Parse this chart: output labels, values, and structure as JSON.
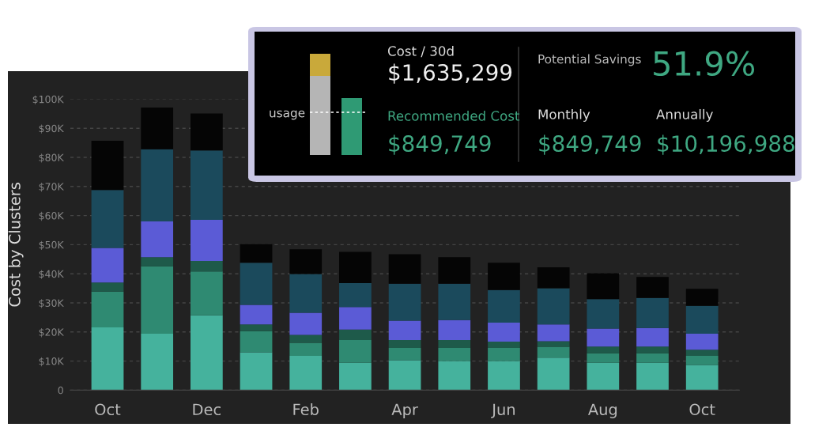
{
  "chart_data": [
    {
      "type": "bar",
      "stacked": true,
      "ylabel": "Cost by Clusters",
      "categories": [
        "Oct",
        null,
        "Dec",
        null,
        "Feb",
        null,
        "Apr",
        null,
        "Jun",
        null,
        "Aug",
        null,
        "Oct"
      ],
      "series": [
        {
          "color": "#45b29d",
          "values": [
            21.6,
            19.4,
            25.7,
            13.0,
            11.8,
            9.4,
            10.3,
            10.0,
            10.0,
            11.2,
            9.4,
            9.4,
            8.7
          ]
        },
        {
          "color": "#2f8a72",
          "values": [
            12.3,
            23.2,
            15.1,
            7.3,
            4.5,
            7.8,
            4.2,
            4.5,
            4.5,
            3.7,
            3.3,
            3.3,
            3.1
          ]
        },
        {
          "color": "#1e5a4a",
          "values": [
            3.1,
            3.1,
            3.6,
            2.3,
            2.7,
            3.6,
            2.7,
            2.7,
            2.2,
            1.9,
            2.3,
            2.3,
            2.1
          ]
        },
        {
          "color": "#5b5bd6",
          "values": [
            11.9,
            12.3,
            14.1,
            6.7,
            7.6,
            7.8,
            6.7,
            6.9,
            6.5,
            5.8,
            6.2,
            6.4,
            5.5
          ]
        },
        {
          "color": "#1b4a5c",
          "values": [
            19.9,
            24.8,
            23.9,
            14.5,
            13.3,
            8.2,
            12.7,
            12.5,
            11.2,
            12.4,
            10.1,
            10.3,
            9.6
          ]
        },
        {
          "color": "#050505",
          "values": [
            16.9,
            14.3,
            12.7,
            6.4,
            8.5,
            10.7,
            10.1,
            9.1,
            9.4,
            7.2,
            8.9,
            7.2,
            5.8
          ]
        }
      ],
      "ylim": [
        0,
        100
      ],
      "yticks": [
        0,
        {
          "value": 10,
          "label": "$10K"
        },
        {
          "value": 20,
          "label": "$20K"
        },
        {
          "value": 30,
          "label": "$30K"
        },
        {
          "value": 40,
          "label": "$40K"
        },
        {
          "value": 50,
          "label": "$50K"
        },
        {
          "value": 60,
          "label": "$60K"
        },
        {
          "value": 70,
          "label": "$70K"
        },
        {
          "value": 80,
          "label": "$80K"
        },
        {
          "value": 90,
          "label": "$90K"
        },
        {
          "value": 100,
          "label": "$100K"
        }
      ],
      "grid": "y"
    },
    {
      "type": "other",
      "annotations": [
        "usage",
        "Cost / 30d",
        "$1,635,299",
        "Recommended Cost",
        "$849,749",
        "Potential Savings",
        "51.9%",
        "Monthly",
        "$849,749",
        "Annually",
        "$10,196,988"
      ]
    }
  ]
}
